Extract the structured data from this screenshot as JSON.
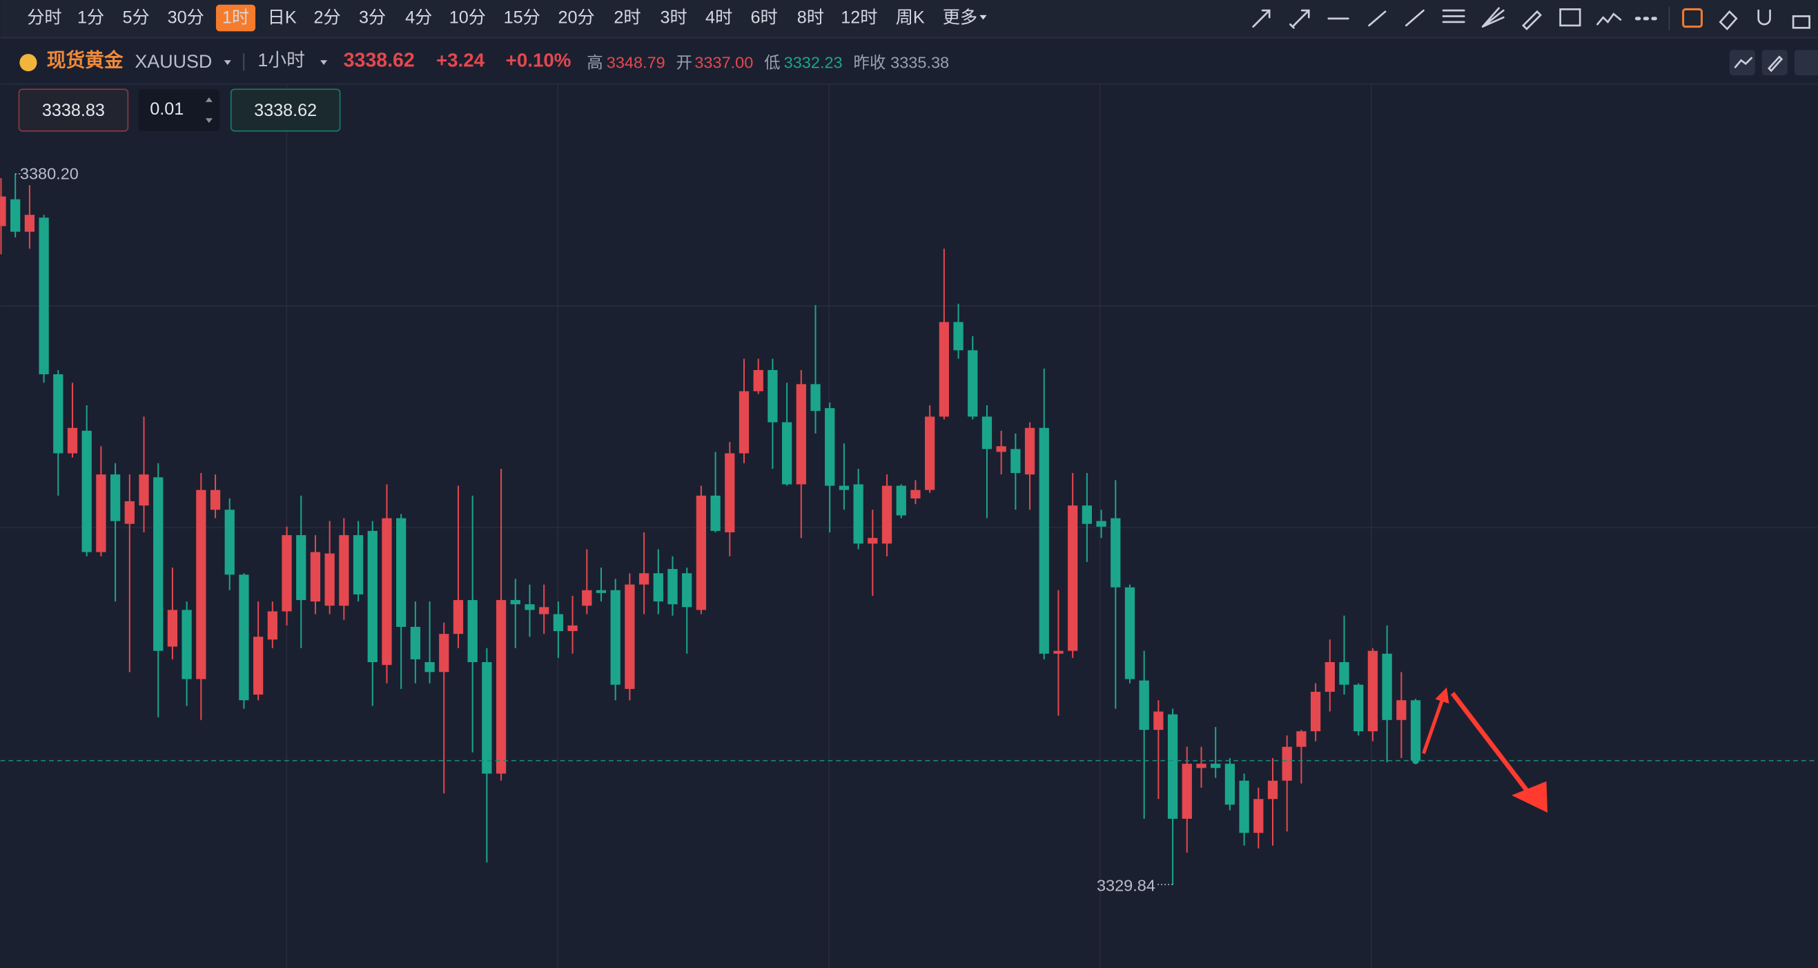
{
  "toolbar": {
    "periods": [
      "分时",
      "1分",
      "5分",
      "30分",
      "1时",
      "日K",
      "2分",
      "3分",
      "4分",
      "10分",
      "15分",
      "20分",
      "2时",
      "3时",
      "4时",
      "6时",
      "8时",
      "12时",
      "周K",
      "更多"
    ],
    "active": 4
  },
  "symbol": {
    "name": "现货黄金",
    "code": "XAUUSD",
    "interval": "1小时",
    "price": "3338.62",
    "change": "+3.24",
    "change_pct": "+0.10%",
    "high_label": "高",
    "high": "3348.79",
    "open_label": "开",
    "open": "3337.00",
    "low_label": "低",
    "low": "3332.23",
    "prev_close_label": "昨收",
    "prev_close": "3335.38"
  },
  "order": {
    "sell": "3338.83",
    "qty": "0.01",
    "buy": "3338.62"
  },
  "chart_data": {
    "type": "candlestick",
    "up_color": "#e5484f",
    "down_color": "#1ba68c",
    "last_price": 3338.62,
    "max_marker": {
      "value": 3380.2,
      "label": "3380.20"
    },
    "min_marker": {
      "value": 3329.84,
      "label": "3329.84"
    },
    "candles": {
      "open": [
        3376.5,
        3378.4,
        3376.1,
        3377.1,
        3366.0,
        3360.4,
        3362.0,
        3353.4,
        3358.9,
        3355.4,
        3356.7,
        3358.7,
        3346.7,
        3349.3,
        3344.4,
        3356.4,
        3356.4,
        3351.8,
        3343.3,
        3347.2,
        3349.2,
        3354.6,
        3349.9,
        3349.6,
        3349.6,
        3354.6,
        3354.9,
        3345.4,
        3355.8,
        3348.1,
        3345.6,
        3344.9,
        3347.6,
        3350.0,
        3345.6,
        3337.7,
        3350.0,
        3349.7,
        3349.0,
        3349.0,
        3347.8,
        3349.6,
        3350.7,
        3350.7,
        3343.7,
        3351.1,
        3351.9,
        3352.2,
        3351.9,
        3349.3,
        3357.4,
        3354.8,
        3360.4,
        3364.8,
        3366.3,
        3362.6,
        3358.2,
        3365.3,
        3363.6,
        3358.1,
        3358.2,
        3354.0,
        3354.0,
        3358.1,
        3357.2,
        3357.8,
        3363.0,
        3369.7,
        3367.7,
        3363.0,
        3360.5,
        3360.7,
        3358.9,
        3362.2,
        3346.2,
        3346.4,
        3356.7,
        3355.6,
        3355.8,
        3350.9,
        3344.3,
        3340.8,
        3341.9,
        3334.5,
        3338.1,
        3338.4,
        3338.4,
        3337.2,
        3333.5,
        3335.9,
        3337.2,
        3339.6,
        3340.7,
        3343.5,
        3345.6,
        3344.0,
        3340.7,
        3346.2,
        3341.5,
        3342.9
      ],
      "high": [
        3379.9,
        3380.2,
        3379.4,
        3377.3,
        3366.3,
        3365.4,
        3363.8,
        3360.9,
        3359.7,
        3358.9,
        3363.0,
        3359.7,
        3352.3,
        3349.9,
        3359.0,
        3358.9,
        3357.2,
        3351.9,
        3349.9,
        3349.9,
        3355.2,
        3357.4,
        3354.6,
        3355.6,
        3355.8,
        3355.6,
        3355.6,
        3358.2,
        3356.1,
        3349.9,
        3349.9,
        3348.4,
        3358.1,
        3357.4,
        3346.6,
        3359.3,
        3351.5,
        3351.1,
        3351.1,
        3349.9,
        3350.3,
        3353.6,
        3352.3,
        3351.5,
        3351.9,
        3354.8,
        3353.6,
        3353.1,
        3352.3,
        3358.1,
        3360.5,
        3361.2,
        3367.1,
        3367.1,
        3367.1,
        3365.4,
        3366.3,
        3370.9,
        3364.0,
        3361.1,
        3359.3,
        3356.4,
        3358.9,
        3358.2,
        3358.5,
        3363.8,
        3374.9,
        3371.0,
        3368.7,
        3363.8,
        3362.0,
        3361.8,
        3362.6,
        3366.4,
        3350.7,
        3359.0,
        3359.0,
        3356.4,
        3358.5,
        3351.1,
        3346.4,
        3342.9,
        3342.3,
        3339.6,
        3339.6,
        3341.0,
        3338.8,
        3337.7,
        3336.7,
        3338.8,
        3340.4,
        3340.8,
        3344.1,
        3347.2,
        3348.9,
        3344.1,
        3346.6,
        3348.2,
        3344.9,
        3343.0
      ],
      "low": [
        3374.5,
        3375.7,
        3374.9,
        3365.4,
        3357.4,
        3360.1,
        3353.1,
        3353.1,
        3349.9,
        3344.9,
        3354.8,
        3341.7,
        3345.8,
        3342.5,
        3341.5,
        3355.8,
        3350.7,
        3342.3,
        3342.9,
        3346.6,
        3348.2,
        3346.6,
        3349.0,
        3349.0,
        3348.6,
        3349.9,
        3342.5,
        3344.1,
        3343.7,
        3344.1,
        3344.1,
        3336.3,
        3346.6,
        3339.2,
        3331.4,
        3337.2,
        3346.6,
        3347.4,
        3347.6,
        3345.9,
        3346.2,
        3349.0,
        3349.9,
        3342.9,
        3342.9,
        3349.0,
        3349.0,
        3348.9,
        3346.2,
        3349.0,
        3354.8,
        3353.1,
        3359.7,
        3364.6,
        3359.3,
        3358.1,
        3354.4,
        3361.8,
        3354.8,
        3356.4,
        3353.6,
        3350.3,
        3353.1,
        3355.8,
        3356.8,
        3357.6,
        3362.8,
        3367.1,
        3362.8,
        3355.8,
        3358.9,
        3356.4,
        3356.4,
        3345.8,
        3341.8,
        3345.9,
        3352.7,
        3354.4,
        3342.3,
        3344.1,
        3334.5,
        3335.9,
        3329.84,
        3332.1,
        3336.7,
        3337.4,
        3335.1,
        3332.6,
        3332.4,
        3332.6,
        3333.6,
        3337.0,
        3340.0,
        3342.1,
        3343.3,
        3340.4,
        3340.0,
        3338.5,
        3338.8,
        3338.4
      ],
      "close": [
        3378.6,
        3376.1,
        3377.3,
        3366.0,
        3360.4,
        3362.2,
        3353.4,
        3358.9,
        3355.6,
        3357.0,
        3358.9,
        3346.4,
        3349.3,
        3344.4,
        3357.8,
        3357.8,
        3351.8,
        3342.9,
        3347.4,
        3349.2,
        3354.6,
        3350.0,
        3353.4,
        3353.3,
        3354.6,
        3350.4,
        3345.6,
        3355.8,
        3348.1,
        3345.8,
        3344.9,
        3347.6,
        3350.0,
        3345.6,
        3337.7,
        3350.0,
        3349.7,
        3349.3,
        3349.5,
        3347.8,
        3348.2,
        3350.7,
        3350.5,
        3344.0,
        3351.1,
        3351.9,
        3349.9,
        3349.7,
        3349.5,
        3357.4,
        3354.9,
        3360.4,
        3364.8,
        3366.3,
        3362.6,
        3358.2,
        3365.3,
        3363.4,
        3358.1,
        3357.8,
        3354.0,
        3354.4,
        3358.1,
        3356.0,
        3357.8,
        3363.0,
        3369.7,
        3367.7,
        3363.0,
        3360.7,
        3360.9,
        3359.0,
        3362.2,
        3346.2,
        3346.4,
        3356.7,
        3355.4,
        3355.2,
        3350.9,
        3344.4,
        3340.8,
        3342.1,
        3334.5,
        3338.4,
        3338.4,
        3338.1,
        3335.5,
        3333.5,
        3335.9,
        3337.2,
        3339.6,
        3340.7,
        3343.5,
        3345.6,
        3344.0,
        3340.7,
        3346.4,
        3341.5,
        3342.9,
        3338.62
      ]
    }
  }
}
